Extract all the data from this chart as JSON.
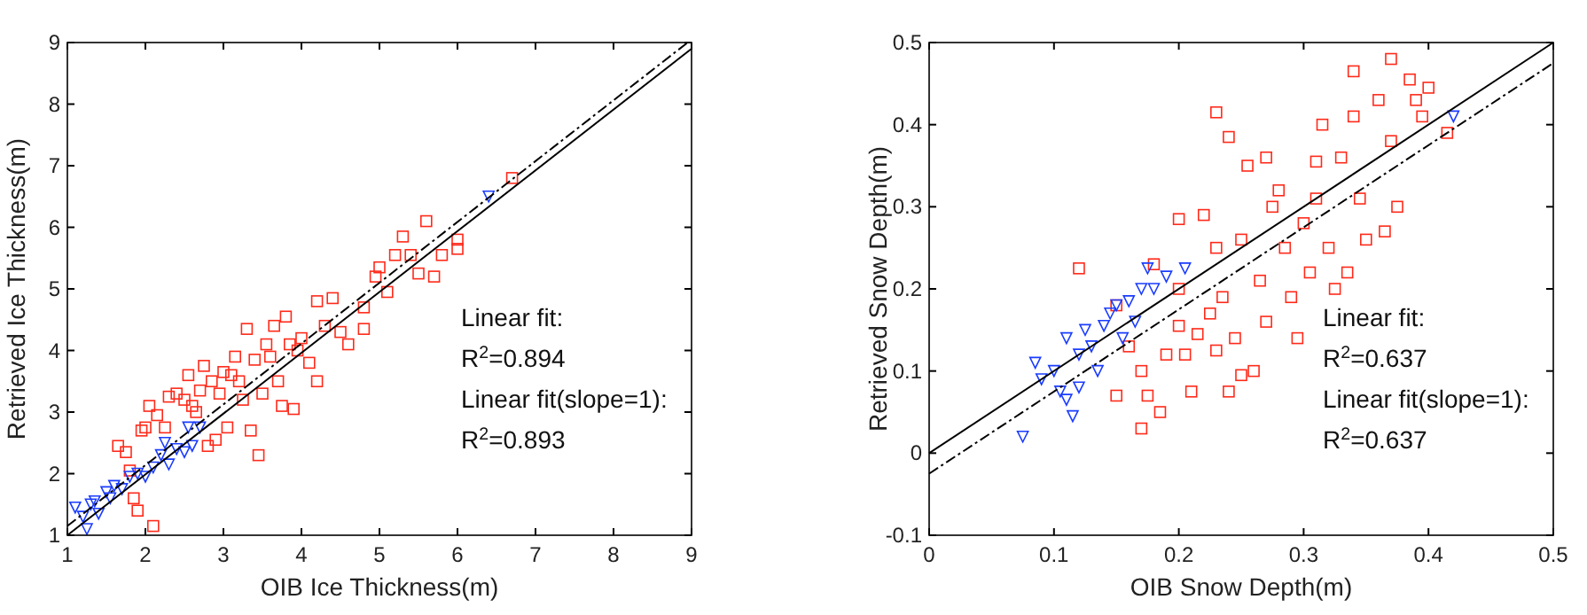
{
  "chart_data": [
    {
      "type": "scatter",
      "xlabel": "OIB Ice Thickness(m)",
      "ylabel": "Retrieved Ice Thickness(m)",
      "xlim": [
        1,
        9
      ],
      "ylim": [
        1,
        9
      ],
      "xticks": [
        1,
        2,
        3,
        4,
        5,
        6,
        7,
        8,
        9
      ],
      "yticks": [
        1,
        2,
        3,
        4,
        5,
        6,
        7,
        8,
        9
      ],
      "grid": false,
      "annotations": [
        "Linear fit:",
        "R$^{2}$=0.894",
        "Linear fit(slope=1):",
        "R$^{2}$=0.893"
      ],
      "series": [
        {
          "marker": "square",
          "color": "#ff2a1a",
          "x": [
            1.65,
            1.75,
            1.8,
            1.85,
            1.9,
            1.95,
            2.0,
            2.05,
            2.1,
            2.15,
            2.25,
            2.3,
            2.4,
            2.5,
            2.55,
            2.6,
            2.65,
            2.7,
            2.75,
            2.8,
            2.85,
            2.9,
            2.95,
            3.0,
            3.05,
            3.1,
            3.15,
            3.2,
            3.25,
            3.3,
            3.35,
            3.4,
            3.45,
            3.5,
            3.55,
            3.6,
            3.65,
            3.7,
            3.75,
            3.8,
            3.85,
            3.9,
            3.95,
            4.0,
            4.1,
            4.2,
            4.2,
            4.3,
            4.4,
            4.5,
            4.6,
            4.8,
            4.8,
            4.95,
            5.0,
            5.1,
            5.2,
            5.3,
            5.4,
            5.5,
            5.6,
            5.7,
            5.8,
            6.0,
            6.0,
            6.7
          ],
          "values": [
            2.45,
            2.35,
            2.05,
            1.6,
            1.4,
            2.7,
            2.75,
            3.1,
            1.15,
            2.95,
            2.75,
            3.25,
            3.3,
            3.2,
            3.6,
            3.1,
            3.0,
            3.35,
            3.75,
            2.45,
            3.5,
            2.55,
            3.3,
            3.65,
            2.75,
            3.6,
            3.9,
            3.5,
            3.2,
            4.35,
            2.7,
            3.85,
            2.3,
            3.3,
            4.1,
            3.9,
            4.4,
            3.5,
            3.1,
            4.55,
            4.1,
            3.05,
            4.0,
            4.2,
            3.8,
            4.8,
            3.5,
            4.4,
            4.85,
            4.3,
            4.1,
            4.7,
            4.35,
            5.2,
            5.35,
            4.95,
            5.55,
            5.85,
            5.55,
            5.25,
            6.1,
            5.2,
            5.55,
            5.8,
            5.65,
            6.8
          ]
        },
        {
          "marker": "triangle",
          "color": "#1a3cff",
          "x": [
            1.1,
            1.2,
            1.25,
            1.3,
            1.35,
            1.4,
            1.5,
            1.55,
            1.6,
            1.7,
            1.8,
            1.9,
            2.0,
            2.1,
            2.2,
            2.25,
            2.3,
            2.4,
            2.5,
            2.55,
            2.6,
            2.7,
            6.4
          ],
          "values": [
            1.45,
            1.3,
            1.1,
            1.5,
            1.55,
            1.35,
            1.7,
            1.6,
            1.8,
            1.75,
            1.95,
            2.0,
            1.95,
            2.1,
            2.3,
            2.5,
            2.15,
            2.4,
            2.35,
            2.75,
            2.45,
            2.75,
            6.5
          ]
        },
        {
          "type": "line",
          "line_style": "solid",
          "marker": "none",
          "color": "#000000",
          "x": [
            1,
            9
          ],
          "values": [
            1.0,
            8.9
          ]
        },
        {
          "type": "line",
          "line_style": "dashed",
          "marker": "none",
          "color": "#000000",
          "x": [
            1,
            8.95
          ],
          "values": [
            1.15,
            9
          ]
        }
      ]
    },
    {
      "type": "scatter",
      "xlabel": "OIB Snow Depth(m)",
      "ylabel": "Retrieved Snow Depth(m)",
      "xlim": [
        0,
        0.5
      ],
      "ylim": [
        -0.1,
        0.5
      ],
      "xticks": [
        0,
        0.1,
        0.2,
        0.3,
        0.4,
        0.5
      ],
      "yticks": [
        -0.1,
        0,
        0.1,
        0.2,
        0.3,
        0.4,
        0.5
      ],
      "grid": false,
      "annotations": [
        "Linear fit:",
        "R$^{2}$=0.637",
        "Linear fit(slope=1):",
        "R$^{2}$=0.637"
      ],
      "series": [
        {
          "marker": "square",
          "color": "#ff2a1a",
          "x": [
            0.12,
            0.15,
            0.15,
            0.16,
            0.17,
            0.17,
            0.175,
            0.18,
            0.185,
            0.19,
            0.2,
            0.2,
            0.205,
            0.21,
            0.215,
            0.22,
            0.225,
            0.23,
            0.23,
            0.235,
            0.24,
            0.24,
            0.245,
            0.25,
            0.255,
            0.26,
            0.265,
            0.27,
            0.27,
            0.275,
            0.28,
            0.285,
            0.29,
            0.295,
            0.3,
            0.305,
            0.31,
            0.31,
            0.315,
            0.32,
            0.325,
            0.33,
            0.335,
            0.34,
            0.34,
            0.345,
            0.35,
            0.36,
            0.365,
            0.37,
            0.37,
            0.375,
            0.385,
            0.39,
            0.395,
            0.4,
            0.415,
            0.25,
            0.23,
            0.2
          ],
          "values": [
            0.225,
            0.07,
            0.18,
            0.13,
            0.03,
            0.1,
            0.07,
            0.23,
            0.05,
            0.12,
            0.2,
            0.285,
            0.12,
            0.075,
            0.145,
            0.29,
            0.17,
            0.415,
            0.125,
            0.19,
            0.385,
            0.075,
            0.14,
            0.26,
            0.35,
            0.1,
            0.21,
            0.36,
            0.16,
            0.3,
            0.32,
            0.25,
            0.19,
            0.14,
            0.28,
            0.22,
            0.355,
            0.31,
            0.4,
            0.25,
            0.2,
            0.36,
            0.22,
            0.41,
            0.465,
            0.31,
            0.26,
            0.43,
            0.27,
            0.38,
            0.48,
            0.3,
            0.455,
            0.43,
            0.41,
            0.445,
            0.39,
            0.095,
            0.25,
            0.155
          ]
        },
        {
          "marker": "triangle",
          "color": "#1a3cff",
          "x": [
            0.075,
            0.085,
            0.09,
            0.1,
            0.105,
            0.11,
            0.11,
            0.115,
            0.12,
            0.12,
            0.125,
            0.13,
            0.135,
            0.14,
            0.145,
            0.15,
            0.155,
            0.16,
            0.165,
            0.17,
            0.175,
            0.18,
            0.19,
            0.205,
            0.42
          ],
          "values": [
            0.02,
            0.11,
            0.09,
            0.1,
            0.075,
            0.14,
            0.065,
            0.045,
            0.12,
            0.08,
            0.15,
            0.13,
            0.1,
            0.155,
            0.17,
            0.18,
            0.14,
            0.185,
            0.16,
            0.2,
            0.225,
            0.2,
            0.215,
            0.225,
            0.41
          ]
        },
        {
          "type": "line",
          "line_style": "solid",
          "marker": "none",
          "color": "#000000",
          "x": [
            0,
            0.5
          ],
          "values": [
            0.0,
            0.5
          ]
        },
        {
          "type": "line",
          "line_style": "dashed",
          "marker": "none",
          "color": "#000000",
          "x": [
            0,
            0.5
          ],
          "values": [
            -0.025,
            0.475
          ]
        }
      ]
    }
  ]
}
